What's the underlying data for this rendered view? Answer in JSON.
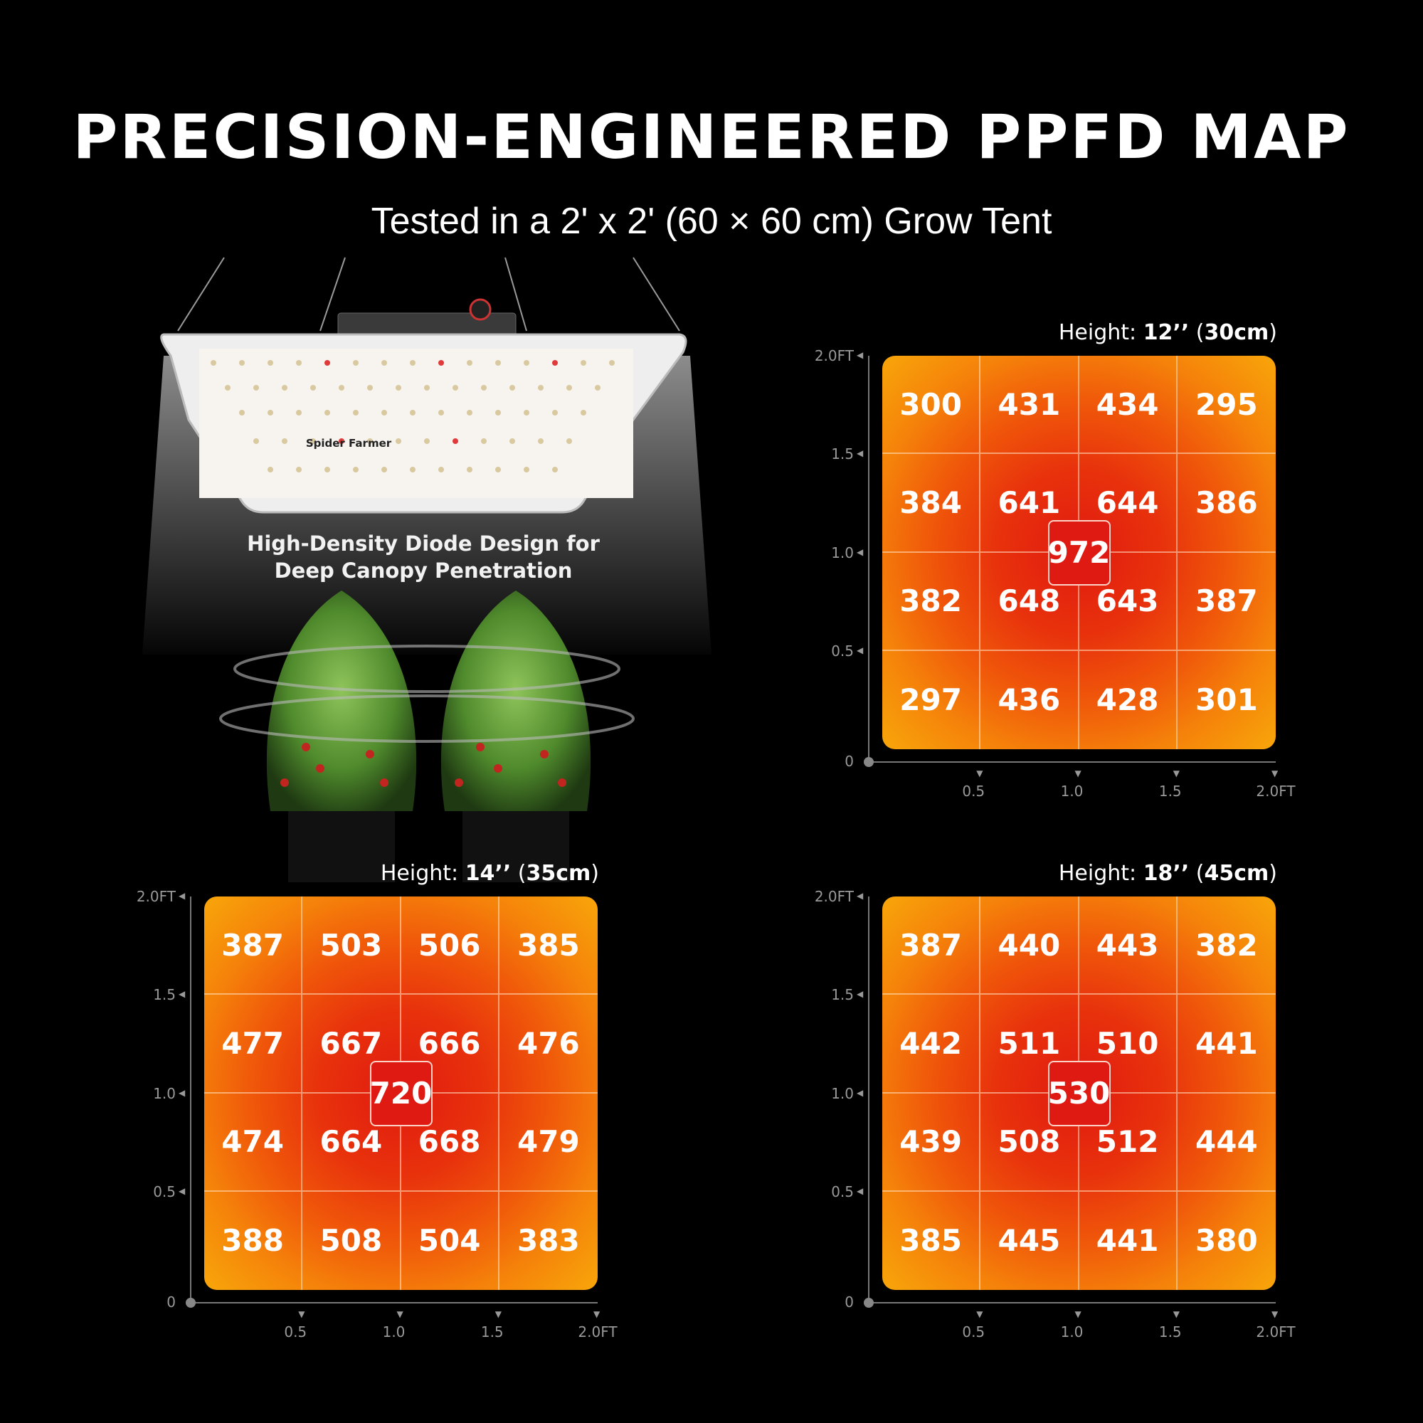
{
  "header": {
    "title": "PRECISION-ENGINEERED PPFD MAP",
    "subtitle": "Tested in a 2' x 2' (60 × 60 cm) Grow Tent"
  },
  "product": {
    "caption_line1": "High-Density Diode Design for",
    "caption_line2": "Deep Canopy Penetration",
    "brand": "Spider Farmer"
  },
  "colors": {
    "background": "#000000",
    "heat_center": "#e01a10",
    "heat_edge": "#f8a60a"
  },
  "chart_data": [
    {
      "type": "heatmap",
      "height_prefix": "Height: ",
      "height_in": "12’’",
      "height_cm_open": " (",
      "height_cm": "30cm",
      "height_cm_close": ")",
      "y_ticks": [
        "0",
        "0.5",
        "1.0",
        "1.5",
        "2.0FT"
      ],
      "x_ticks": [
        "0.5",
        "1.0",
        "1.5",
        "2.0FT"
      ],
      "values": [
        [
          300,
          431,
          434,
          295
        ],
        [
          384,
          641,
          644,
          386
        ],
        [
          382,
          648,
          643,
          387
        ],
        [
          297,
          436,
          428,
          301
        ]
      ],
      "center": 972
    },
    {
      "type": "heatmap",
      "height_prefix": "Height: ",
      "height_in": "14’’",
      "height_cm_open": " (",
      "height_cm": "35cm",
      "height_cm_close": ")",
      "y_ticks": [
        "0",
        "0.5",
        "1.0",
        "1.5",
        "2.0FT"
      ],
      "x_ticks": [
        "0.5",
        "1.0",
        "1.5",
        "2.0FT"
      ],
      "values": [
        [
          387,
          503,
          506,
          385
        ],
        [
          477,
          667,
          666,
          476
        ],
        [
          474,
          664,
          668,
          479
        ],
        [
          388,
          508,
          504,
          383
        ]
      ],
      "center": 720
    },
    {
      "type": "heatmap",
      "height_prefix": "Height: ",
      "height_in": "18’’",
      "height_cm_open": " (",
      "height_cm": "45cm",
      "height_cm_close": ")",
      "y_ticks": [
        "0",
        "0.5",
        "1.0",
        "1.5",
        "2.0FT"
      ],
      "x_ticks": [
        "0.5",
        "1.0",
        "1.5",
        "2.0FT"
      ],
      "values": [
        [
          387,
          440,
          443,
          382
        ],
        [
          442,
          511,
          510,
          441
        ],
        [
          439,
          508,
          512,
          444
        ],
        [
          385,
          445,
          441,
          380
        ]
      ],
      "center": 530
    }
  ]
}
